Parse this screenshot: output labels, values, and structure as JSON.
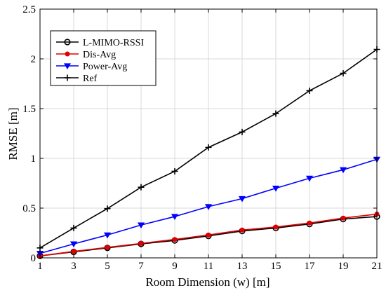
{
  "chart_data": {
    "type": "line",
    "xlabel": "Room Dimension (w) [m]",
    "ylabel": "RMSE [m]",
    "x": [
      1,
      3,
      5,
      7,
      9,
      11,
      13,
      15,
      17,
      19,
      21
    ],
    "xticks": [
      "1",
      "3",
      "5",
      "7",
      "9",
      "11",
      "13",
      "15",
      "17",
      "19",
      "21"
    ],
    "yticks": [
      "0",
      "0.5",
      "1",
      "1.5",
      "2",
      "2.5"
    ],
    "xlim": [
      1,
      21
    ],
    "ylim": [
      0,
      2.5
    ],
    "grid": true,
    "legend_position": "top-left",
    "series": [
      {
        "name": "L-MIMO-RSSI",
        "color": "#000000",
        "marker": "circle-open",
        "values": [
          0.02,
          0.06,
          0.1,
          0.14,
          0.175,
          0.22,
          0.27,
          0.3,
          0.34,
          0.39,
          0.415
        ]
      },
      {
        "name": "Dis-Avg",
        "color": "#e00000",
        "marker": "dot",
        "values": [
          0.02,
          0.065,
          0.105,
          0.145,
          0.185,
          0.23,
          0.28,
          0.31,
          0.35,
          0.4,
          0.44
        ]
      },
      {
        "name": "Power-Avg",
        "color": "#0000ff",
        "marker": "triangle-down",
        "values": [
          0.045,
          0.14,
          0.23,
          0.33,
          0.415,
          0.515,
          0.595,
          0.7,
          0.8,
          0.885,
          0.99
        ]
      },
      {
        "name": "Ref",
        "color": "#000000",
        "marker": "plus",
        "values": [
          0.1,
          0.3,
          0.495,
          0.71,
          0.87,
          1.11,
          1.265,
          1.45,
          1.68,
          1.855,
          2.095
        ]
      }
    ]
  }
}
